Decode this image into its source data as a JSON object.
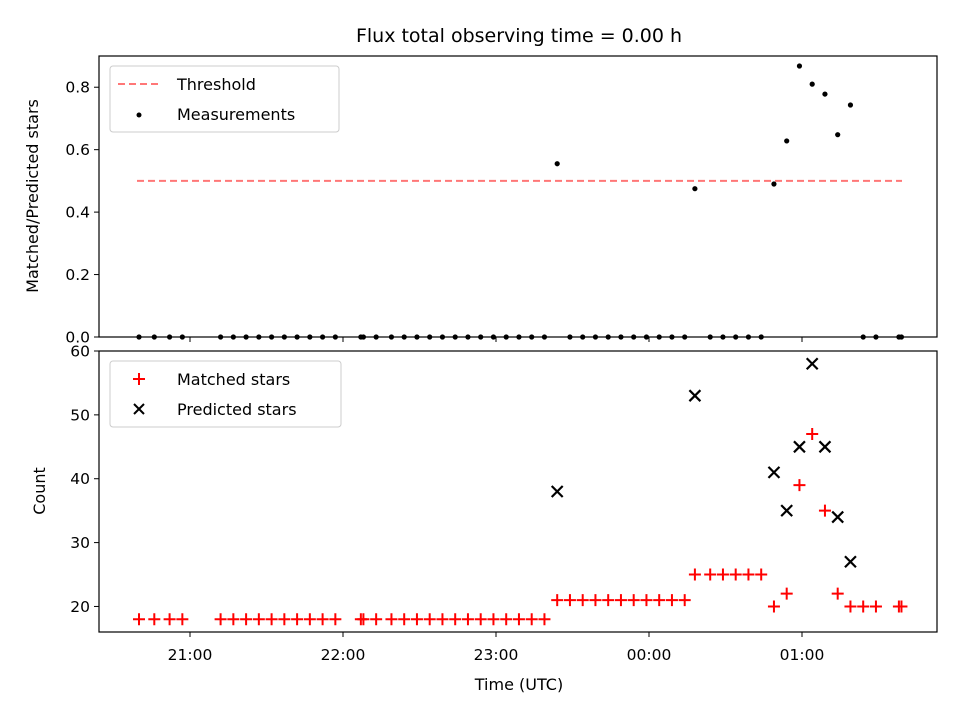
{
  "chart_data": {
    "type": "scatter",
    "title": "Flux total observing time = 0.00 h",
    "xlabel": "Time (UTC)",
    "x_ticks": [
      "21:00",
      "22:00",
      "23:00",
      "00:00",
      "01:00"
    ],
    "panels": [
      {
        "ylabel": "Matched/Predicted stars",
        "ylim": [
          0,
          0.9
        ],
        "y_ticks": [
          "0.0",
          "0.2",
          "0.4",
          "0.6",
          "0.8"
        ],
        "legend_position": "top-left",
        "threshold": {
          "name": "Threshold",
          "value": 0.5,
          "x_range": [
            "20:40",
            "01:40"
          ],
          "color": "#ff7777"
        },
        "series": [
          {
            "name": "Measurements",
            "marker": "dot",
            "color": "#000000",
            "points": [
              [
                "20:40",
                0
              ],
              [
                "20:46",
                0
              ],
              [
                "20:52",
                0
              ],
              [
                "20:57",
                0
              ],
              [
                "21:12",
                0
              ],
              [
                "21:17",
                0
              ],
              [
                "21:22",
                0
              ],
              [
                "21:27",
                0
              ],
              [
                "21:32",
                0
              ],
              [
                "21:37",
                0
              ],
              [
                "21:42",
                0
              ],
              [
                "21:47",
                0
              ],
              [
                "21:52",
                0
              ],
              [
                "21:57",
                0
              ],
              [
                "22:07",
                0
              ],
              [
                "22:08",
                0
              ],
              [
                "22:13",
                0
              ],
              [
                "22:19",
                0
              ],
              [
                "22:24",
                0
              ],
              [
                "22:29",
                0
              ],
              [
                "22:34",
                0
              ],
              [
                "22:39",
                0
              ],
              [
                "22:44",
                0
              ],
              [
                "22:49",
                0
              ],
              [
                "22:54",
                0
              ],
              [
                "22:59",
                0
              ],
              [
                "23:04",
                0
              ],
              [
                "23:09",
                0
              ],
              [
                "23:14",
                0
              ],
              [
                "23:19",
                0
              ],
              [
                "23:24",
                0.555
              ],
              [
                "23:29",
                0
              ],
              [
                "23:34",
                0
              ],
              [
                "23:39",
                0
              ],
              [
                "23:44",
                0
              ],
              [
                "23:49",
                0
              ],
              [
                "23:54",
                0
              ],
              [
                "23:59",
                0
              ],
              [
                "00:04",
                0
              ],
              [
                "00:09",
                0
              ],
              [
                "00:14",
                0
              ],
              [
                "00:18",
                0.475
              ],
              [
                "00:24",
                0
              ],
              [
                "00:29",
                0
              ],
              [
                "00:34",
                0
              ],
              [
                "00:39",
                0
              ],
              [
                "00:44",
                0
              ],
              [
                "00:49",
                0.49
              ],
              [
                "00:54",
                0.628
              ],
              [
                "00:59",
                0.868
              ],
              [
                "01:04",
                0.81
              ],
              [
                "01:09",
                0.778
              ],
              [
                "01:14",
                0.648
              ],
              [
                "01:19",
                0.743
              ],
              [
                "01:24",
                0
              ],
              [
                "01:29",
                0
              ],
              [
                "01:38",
                0
              ],
              [
                "01:39",
                0
              ]
            ]
          }
        ]
      },
      {
        "ylabel": "Count",
        "ylim": [
          16,
          60
        ],
        "y_ticks": [
          "20",
          "30",
          "40",
          "50",
          "60"
        ],
        "legend_position": "top-left",
        "series": [
          {
            "name": "Matched stars",
            "marker": "plus",
            "color": "#ff0000",
            "points": [
              [
                "20:40",
                18
              ],
              [
                "20:46",
                18
              ],
              [
                "20:52",
                18
              ],
              [
                "20:57",
                18
              ],
              [
                "21:12",
                18
              ],
              [
                "21:17",
                18
              ],
              [
                "21:22",
                18
              ],
              [
                "21:27",
                18
              ],
              [
                "21:32",
                18
              ],
              [
                "21:37",
                18
              ],
              [
                "21:42",
                18
              ],
              [
                "21:47",
                18
              ],
              [
                "21:52",
                18
              ],
              [
                "21:57",
                18
              ],
              [
                "22:07",
                18
              ],
              [
                "22:08",
                18
              ],
              [
                "22:13",
                18
              ],
              [
                "22:19",
                18
              ],
              [
                "22:24",
                18
              ],
              [
                "22:29",
                18
              ],
              [
                "22:34",
                18
              ],
              [
                "22:39",
                18
              ],
              [
                "22:44",
                18
              ],
              [
                "22:49",
                18
              ],
              [
                "22:54",
                18
              ],
              [
                "22:59",
                18
              ],
              [
                "23:04",
                18
              ],
              [
                "23:09",
                18
              ],
              [
                "23:14",
                18
              ],
              [
                "23:19",
                18
              ],
              [
                "23:24",
                21
              ],
              [
                "23:29",
                21
              ],
              [
                "23:34",
                21
              ],
              [
                "23:39",
                21
              ],
              [
                "23:44",
                21
              ],
              [
                "23:49",
                21
              ],
              [
                "23:54",
                21
              ],
              [
                "23:59",
                21
              ],
              [
                "00:04",
                21
              ],
              [
                "00:09",
                21
              ],
              [
                "00:14",
                21
              ],
              [
                "00:18",
                25
              ],
              [
                "00:24",
                25
              ],
              [
                "00:29",
                25
              ],
              [
                "00:34",
                25
              ],
              [
                "00:39",
                25
              ],
              [
                "00:44",
                25
              ],
              [
                "00:49",
                20
              ],
              [
                "00:54",
                22
              ],
              [
                "00:59",
                39
              ],
              [
                "01:04",
                47
              ],
              [
                "01:09",
                35
              ],
              [
                "01:14",
                22
              ],
              [
                "01:19",
                20
              ],
              [
                "01:24",
                20
              ],
              [
                "01:29",
                20
              ],
              [
                "01:38",
                20
              ],
              [
                "01:39",
                20
              ]
            ]
          },
          {
            "name": "Predicted stars",
            "marker": "x",
            "color": "#000000",
            "points": [
              [
                "23:24",
                38
              ],
              [
                "00:18",
                53
              ],
              [
                "00:49",
                41
              ],
              [
                "00:54",
                35
              ],
              [
                "00:59",
                45
              ],
              [
                "01:04",
                58
              ],
              [
                "01:09",
                45
              ],
              [
                "01:14",
                34
              ],
              [
                "01:19",
                27
              ]
            ]
          }
        ]
      }
    ]
  }
}
